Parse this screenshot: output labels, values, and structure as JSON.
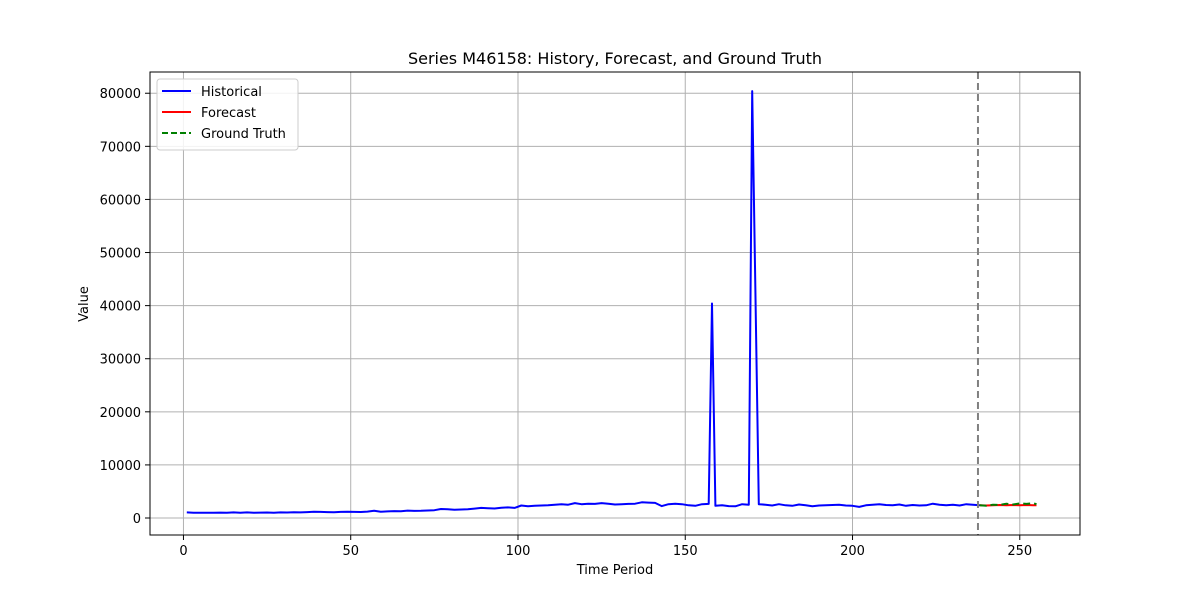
{
  "chart_data": {
    "type": "line",
    "title": "Series M46158: History, Forecast, and Ground Truth",
    "xlabel": "Time Period",
    "ylabel": "Value",
    "xlim": [
      -10,
      268
    ],
    "ylim": [
      -3200,
      84000
    ],
    "xticks": [
      0,
      50,
      100,
      150,
      200,
      250
    ],
    "yticks": [
      0,
      10000,
      20000,
      30000,
      40000,
      50000,
      60000,
      70000,
      80000
    ],
    "grid": true,
    "legend_position": "upper-left",
    "forecast_start": 237.5,
    "series": [
      {
        "name": "Historical",
        "color": "#0000ff",
        "style": "solid",
        "points": [
          [
            1,
            1050
          ],
          [
            3,
            1000
          ],
          [
            5,
            980
          ],
          [
            7,
            1000
          ],
          [
            9,
            990
          ],
          [
            11,
            1020
          ],
          [
            13,
            980
          ],
          [
            15,
            1060
          ],
          [
            17,
            1000
          ],
          [
            19,
            1050
          ],
          [
            21,
            980
          ],
          [
            23,
            1020
          ],
          [
            25,
            1040
          ],
          [
            27,
            1000
          ],
          [
            29,
            1060
          ],
          [
            31,
            1030
          ],
          [
            33,
            1080
          ],
          [
            35,
            1050
          ],
          [
            37,
            1120
          ],
          [
            39,
            1180
          ],
          [
            41,
            1150
          ],
          [
            43,
            1120
          ],
          [
            45,
            1100
          ],
          [
            47,
            1150
          ],
          [
            49,
            1180
          ],
          [
            51,
            1160
          ],
          [
            53,
            1140
          ],
          [
            55,
            1200
          ],
          [
            57,
            1350
          ],
          [
            59,
            1180
          ],
          [
            61,
            1250
          ],
          [
            63,
            1300
          ],
          [
            65,
            1280
          ],
          [
            67,
            1400
          ],
          [
            69,
            1330
          ],
          [
            71,
            1360
          ],
          [
            73,
            1420
          ],
          [
            75,
            1480
          ],
          [
            77,
            1700
          ],
          [
            79,
            1650
          ],
          [
            81,
            1550
          ],
          [
            83,
            1600
          ],
          [
            85,
            1650
          ],
          [
            87,
            1780
          ],
          [
            89,
            1900
          ],
          [
            91,
            1850
          ],
          [
            93,
            1800
          ],
          [
            95,
            1950
          ],
          [
            97,
            2000
          ],
          [
            99,
            1900
          ],
          [
            101,
            2350
          ],
          [
            103,
            2200
          ],
          [
            105,
            2300
          ],
          [
            107,
            2350
          ],
          [
            109,
            2400
          ],
          [
            111,
            2500
          ],
          [
            113,
            2600
          ],
          [
            115,
            2500
          ],
          [
            117,
            2800
          ],
          [
            119,
            2600
          ],
          [
            121,
            2700
          ],
          [
            123,
            2650
          ],
          [
            125,
            2800
          ],
          [
            127,
            2700
          ],
          [
            129,
            2550
          ],
          [
            131,
            2600
          ],
          [
            133,
            2650
          ],
          [
            135,
            2700
          ],
          [
            137,
            2950
          ],
          [
            139,
            2900
          ],
          [
            141,
            2850
          ],
          [
            143,
            2250
          ],
          [
            145,
            2600
          ],
          [
            147,
            2700
          ],
          [
            149,
            2600
          ],
          [
            151,
            2400
          ],
          [
            153,
            2300
          ],
          [
            155,
            2600
          ],
          [
            157,
            2650
          ],
          [
            158,
            40400
          ],
          [
            159,
            2300
          ],
          [
            161,
            2400
          ],
          [
            163,
            2250
          ],
          [
            165,
            2200
          ],
          [
            167,
            2600
          ],
          [
            169,
            2500
          ],
          [
            170,
            80400
          ],
          [
            172,
            2600
          ],
          [
            174,
            2500
          ],
          [
            176,
            2350
          ],
          [
            178,
            2600
          ],
          [
            180,
            2400
          ],
          [
            182,
            2300
          ],
          [
            184,
            2550
          ],
          [
            186,
            2400
          ],
          [
            188,
            2200
          ],
          [
            190,
            2350
          ],
          [
            192,
            2400
          ],
          [
            194,
            2450
          ],
          [
            196,
            2500
          ],
          [
            198,
            2350
          ],
          [
            200,
            2300
          ],
          [
            202,
            2100
          ],
          [
            204,
            2400
          ],
          [
            206,
            2500
          ],
          [
            208,
            2600
          ],
          [
            210,
            2450
          ],
          [
            212,
            2400
          ],
          [
            214,
            2550
          ],
          [
            216,
            2300
          ],
          [
            218,
            2450
          ],
          [
            220,
            2350
          ],
          [
            222,
            2400
          ],
          [
            224,
            2700
          ],
          [
            226,
            2500
          ],
          [
            228,
            2400
          ],
          [
            230,
            2500
          ],
          [
            232,
            2350
          ],
          [
            234,
            2600
          ],
          [
            236,
            2500
          ],
          [
            238,
            2400
          ]
        ]
      },
      {
        "name": "Forecast",
        "color": "#ff0000",
        "style": "solid",
        "points": [
          [
            238,
            2400
          ],
          [
            240,
            2350
          ],
          [
            242,
            2400
          ],
          [
            244,
            2450
          ],
          [
            246,
            2400
          ],
          [
            248,
            2450
          ],
          [
            250,
            2400
          ],
          [
            252,
            2450
          ],
          [
            254,
            2400
          ],
          [
            255,
            2400
          ]
        ]
      },
      {
        "name": "Ground Truth",
        "color": "#008000",
        "style": "dashed",
        "points": [
          [
            238,
            2400
          ],
          [
            240,
            2300
          ],
          [
            242,
            2500
          ],
          [
            244,
            2450
          ],
          [
            246,
            2700
          ],
          [
            248,
            2550
          ],
          [
            250,
            2750
          ],
          [
            252,
            2650
          ],
          [
            254,
            2800
          ],
          [
            255,
            2600
          ]
        ]
      }
    ]
  }
}
